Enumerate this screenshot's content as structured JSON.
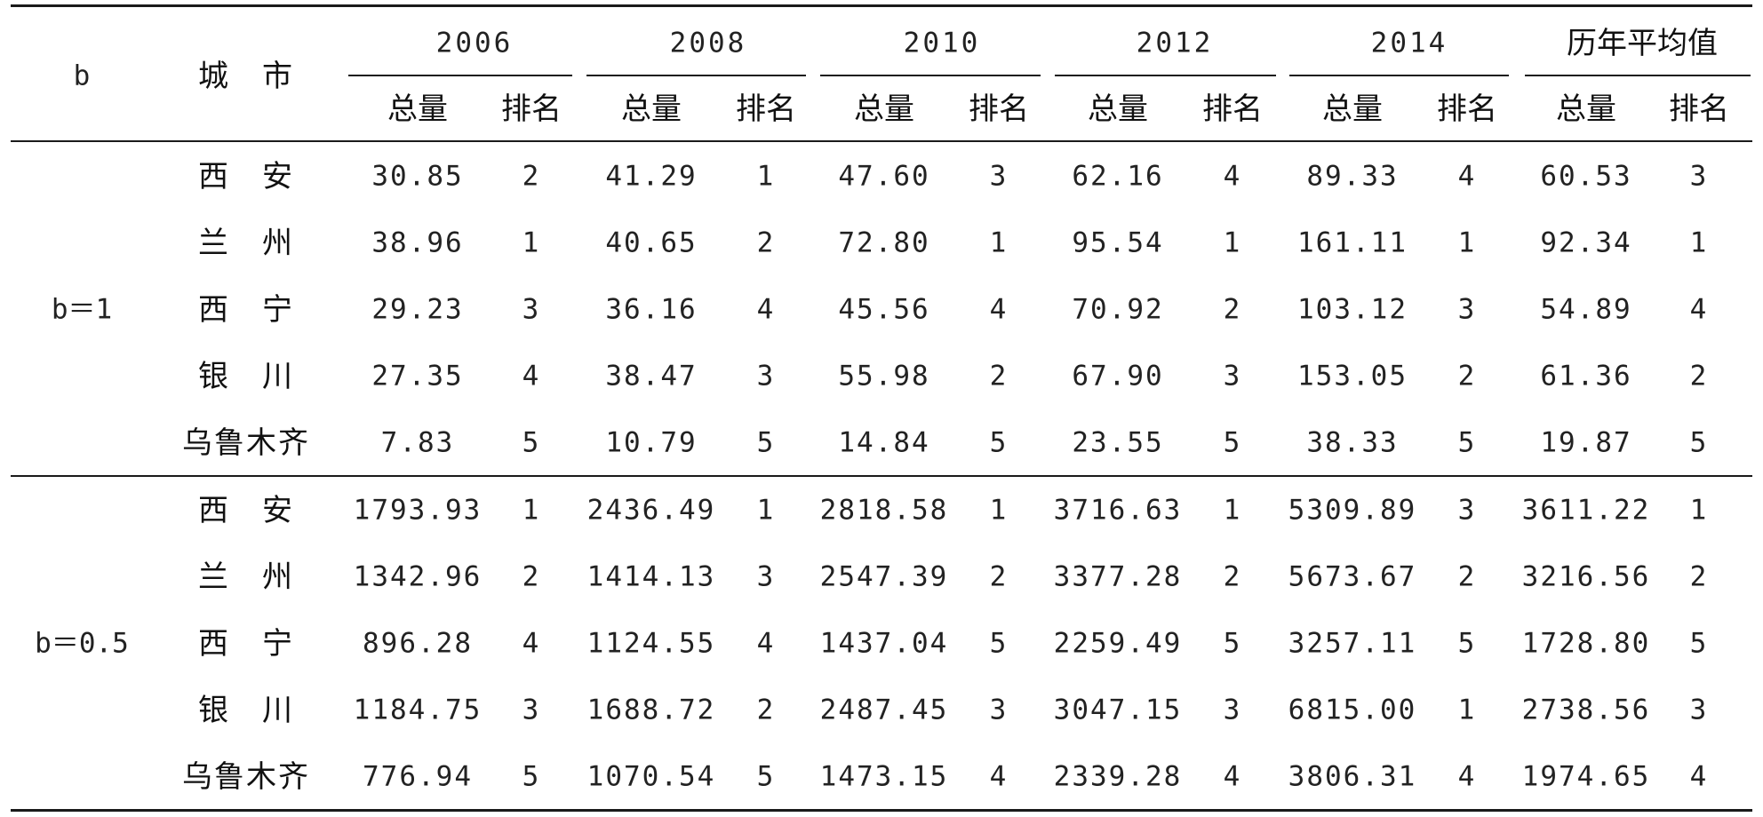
{
  "table": {
    "header": {
      "b_label": "b",
      "city_label": "城　市",
      "years": [
        "2006",
        "2008",
        "2010",
        "2012",
        "2014",
        "历年平均值"
      ],
      "total_label": "总量",
      "rank_label": "排名"
    },
    "groups": [
      {
        "label": "b＝1",
        "rows": [
          {
            "city": "西　安",
            "cells": [
              "30.85",
              "2",
              "41.29",
              "1",
              "47.60",
              "3",
              "62.16",
              "4",
              "89.33",
              "4",
              "60.53",
              "3"
            ]
          },
          {
            "city": "兰　州",
            "cells": [
              "38.96",
              "1",
              "40.65",
              "2",
              "72.80",
              "1",
              "95.54",
              "1",
              "161.11",
              "1",
              "92.34",
              "1"
            ]
          },
          {
            "city": "西　宁",
            "cells": [
              "29.23",
              "3",
              "36.16",
              "4",
              "45.56",
              "4",
              "70.92",
              "2",
              "103.12",
              "3",
              "54.89",
              "4"
            ]
          },
          {
            "city": "银　川",
            "cells": [
              "27.35",
              "4",
              "38.47",
              "3",
              "55.98",
              "2",
              "67.90",
              "3",
              "153.05",
              "2",
              "61.36",
              "2"
            ]
          },
          {
            "city": "乌鲁木齐",
            "cells": [
              "7.83",
              "5",
              "10.79",
              "5",
              "14.84",
              "5",
              "23.55",
              "5",
              "38.33",
              "5",
              "19.87",
              "5"
            ]
          }
        ]
      },
      {
        "label": "b＝0.5",
        "rows": [
          {
            "city": "西　安",
            "cells": [
              "1793.93",
              "1",
              "2436.49",
              "1",
              "2818.58",
              "1",
              "3716.63",
              "1",
              "5309.89",
              "3",
              "3611.22",
              "1"
            ]
          },
          {
            "city": "兰　州",
            "cells": [
              "1342.96",
              "2",
              "1414.13",
              "3",
              "2547.39",
              "2",
              "3377.28",
              "2",
              "5673.67",
              "2",
              "3216.56",
              "2"
            ]
          },
          {
            "city": "西　宁",
            "cells": [
              "896.28",
              "4",
              "1124.55",
              "4",
              "1437.04",
              "5",
              "2259.49",
              "5",
              "3257.11",
              "5",
              "1728.80",
              "5"
            ]
          },
          {
            "city": "银　川",
            "cells": [
              "1184.75",
              "3",
              "1688.72",
              "2",
              "2487.45",
              "3",
              "3047.15",
              "3",
              "6815.00",
              "1",
              "2738.56",
              "3"
            ]
          },
          {
            "city": "乌鲁木齐",
            "cells": [
              "776.94",
              "5",
              "1070.54",
              "5",
              "1473.15",
              "4",
              "2339.28",
              "4",
              "3806.31",
              "4",
              "1974.65",
              "4"
            ]
          }
        ]
      }
    ]
  }
}
